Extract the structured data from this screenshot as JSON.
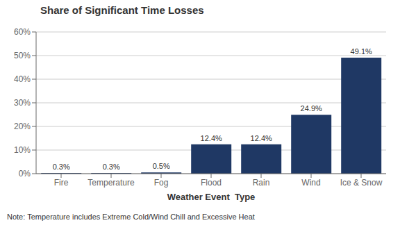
{
  "chart_data": {
    "type": "bar",
    "title": "Share of Significant Time Losses",
    "categories": [
      "Fire",
      "Temperature",
      "Fog",
      "Flood",
      "Rain",
      "Wind",
      "Ice & Snow"
    ],
    "values": [
      0.3,
      0.3,
      0.5,
      12.4,
      12.4,
      24.9,
      49.1
    ],
    "value_labels": [
      "0.3%",
      "0.3%",
      "0.5%",
      "12.4%",
      "12.4%",
      "24.9%",
      "49.1%"
    ],
    "data_labels": true,
    "color": "#1F3864",
    "xlabel": "Weather Event  Type",
    "ylim": [
      0,
      60
    ],
    "yticks": [
      {
        "value": 0,
        "label": "0%"
      },
      {
        "value": 10,
        "label": "10%"
      },
      {
        "value": 20,
        "label": "20%"
      },
      {
        "value": 30,
        "label": "30%"
      },
      {
        "value": 40,
        "label": "40%"
      },
      {
        "value": 50,
        "label": "50%"
      },
      {
        "value": 60,
        "label": "60%"
      }
    ],
    "grid": true,
    "note": "Note: Temperature includes Extreme Cold/Wind Chill and Excessive Heat"
  }
}
